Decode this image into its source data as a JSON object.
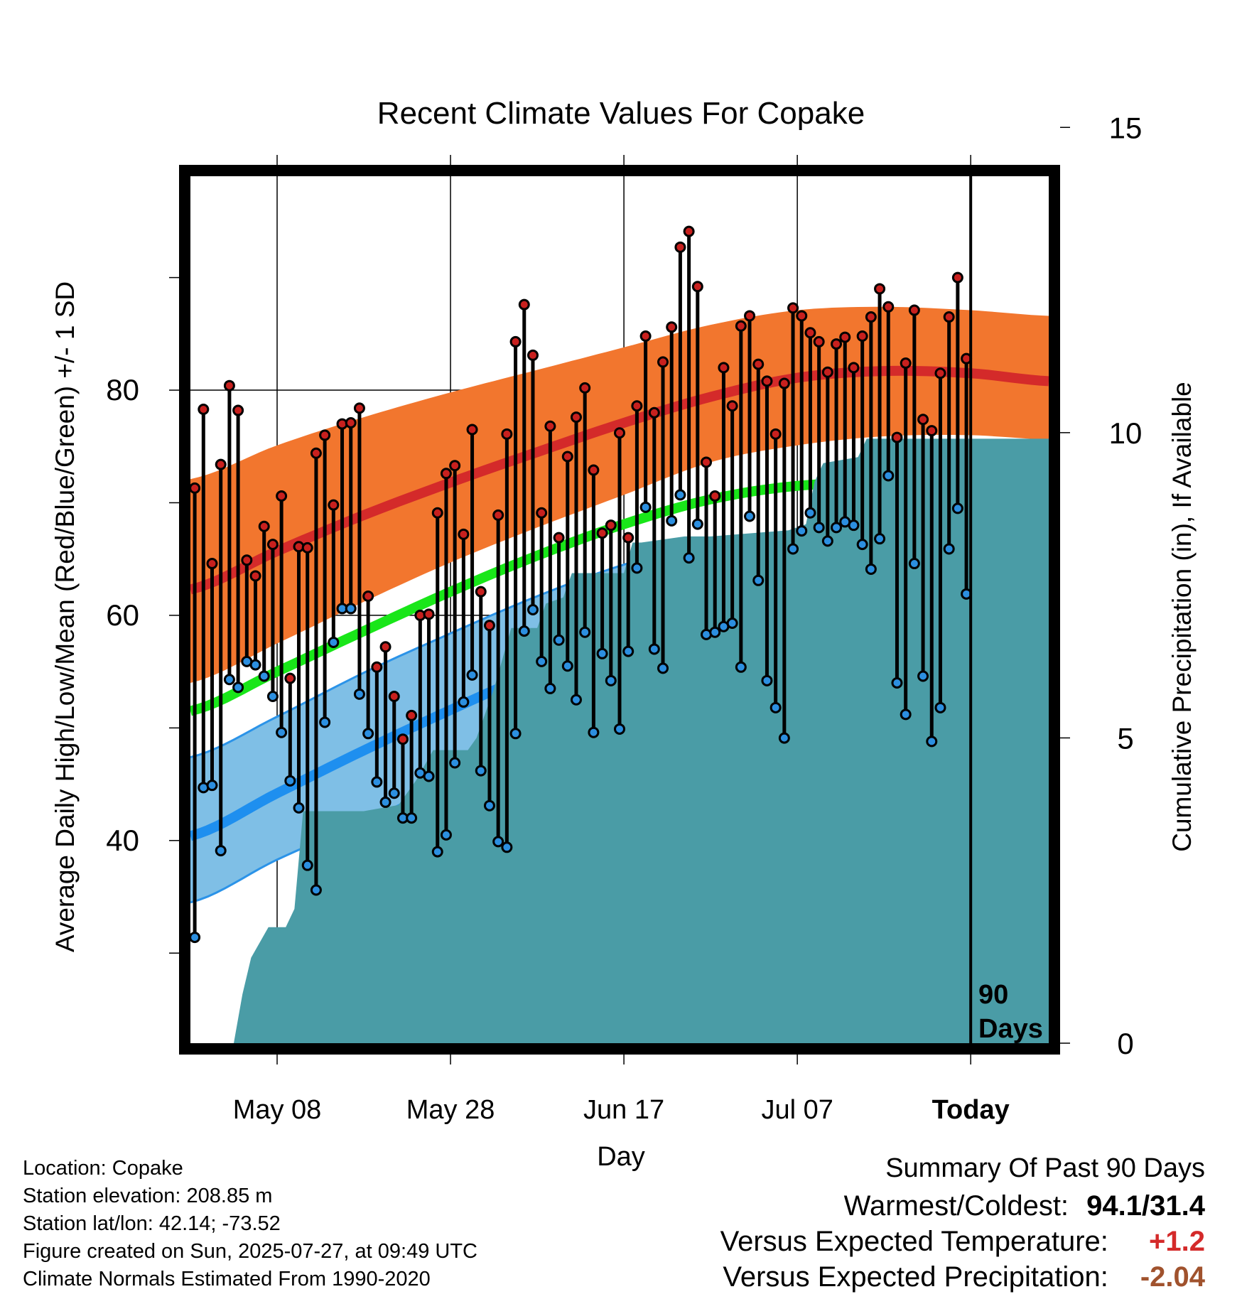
{
  "chart_data": {
    "type": "line",
    "title": "Recent Climate Values For Copake",
    "xlabel": "Day",
    "ylabel": "Average Daily High/Low/Mean (Red/Blue/Green) +/- 1 SD",
    "y2label": "Cumulative Precipitation (in), If Available",
    "x_tick_labels": [
      "May 08",
      "May 28",
      "Jun 17",
      "Jul 07",
      "Today"
    ],
    "y_ticks": [
      40,
      60,
      80
    ],
    "y_minor_ticks": [
      30,
      50,
      70,
      90
    ],
    "y2_ticks": [
      0,
      5,
      10,
      15
    ],
    "ylim": [
      22,
      99
    ],
    "y2lim": [
      0,
      14.2
    ],
    "period_label": [
      "90",
      "Days"
    ],
    "x_range_days_from_today": [
      -90,
      9
    ],
    "colors": {
      "high_band": "#f2762e",
      "high_mean": "#d42a2a",
      "low_band": "#7fbfe6",
      "low_mean": "#1e8fef",
      "low_band_edge": "#2b93e8",
      "mean": "#19e619",
      "precip": "#4a9ca6",
      "high_dot": "#c8201e",
      "low_dot": "#2c8fe0"
    },
    "normals": {
      "days": [
        -90,
        -80,
        -70,
        -60,
        -50,
        -40,
        -30,
        -20,
        -10,
        0,
        9
      ],
      "high_mean": [
        62.3,
        65.7,
        68.9,
        71.8,
        74.5,
        77.1,
        79.4,
        81.1,
        81.7,
        81.5,
        80.8
      ],
      "high_upper": [
        72.1,
        75.1,
        77.6,
        79.8,
        81.8,
        83.8,
        85.8,
        87.1,
        87.4,
        87.1,
        86.6
      ],
      "high_lower": [
        54.0,
        57.5,
        61.2,
        64.7,
        67.8,
        70.7,
        73.6,
        75.1,
        75.9,
        76.0,
        75.6
      ],
      "mean": [
        51.5,
        55.0,
        58.6,
        62.1,
        65.3,
        68.1,
        70.3,
        71.5,
        71.7,
        71.4,
        70.8
      ],
      "low_mean": [
        40.4,
        44.2,
        48.0,
        51.6,
        55.0,
        58.0,
        60.4,
        61.3,
        61.6,
        61.4,
        60.8
      ],
      "low_upper": [
        47.4,
        51.0,
        54.9,
        58.4,
        61.7,
        64.5,
        66.4,
        66.8,
        66.7,
        66.6,
        66.3
      ],
      "low_lower": [
        34.5,
        38.3,
        41.7,
        45.3,
        48.9,
        52.2,
        54.5,
        55.4,
        55.9,
        55.9,
        55.5
      ]
    },
    "daily": {
      "day_offset_from_today": [
        -90,
        -89,
        -88,
        -87,
        -86,
        -85,
        -84,
        -83,
        -82,
        -81,
        -80,
        -79,
        -78,
        -77,
        -76,
        -75,
        -74,
        -73,
        -72,
        -71,
        -70,
        -69,
        -68,
        -67,
        -66,
        -65,
        -64,
        -63,
        -62,
        -61,
        -60,
        -59,
        -58,
        -57,
        -56,
        -55,
        -54,
        -53,
        -52,
        -51,
        -50,
        -49,
        -48,
        -47,
        -46,
        -45,
        -44,
        -43,
        -42,
        -41,
        -40,
        -39,
        -38,
        -37,
        -36,
        -35,
        -34,
        -33,
        -32,
        -31,
        -30,
        -29,
        -28,
        -27,
        -26,
        -25,
        -24,
        -23,
        -22,
        -21,
        -20,
        -19,
        -18,
        -17,
        -16,
        -15,
        -14,
        -13,
        -12,
        -11,
        -10,
        -9,
        -8,
        -7,
        -6,
        -5,
        -4,
        -3,
        -2,
        -1
      ],
      "high": [
        71.3,
        78.3,
        64.6,
        73.4,
        80.4,
        78.2,
        64.9,
        63.5,
        67.9,
        66.3,
        70.6,
        54.4,
        66.1,
        66.0,
        74.4,
        76.0,
        69.8,
        77.0,
        77.1,
        78.4,
        61.7,
        55.4,
        57.2,
        52.8,
        49.0,
        51.1,
        60.0,
        60.1,
        69.1,
        72.6,
        73.3,
        67.2,
        76.5,
        62.1,
        59.1,
        68.9,
        76.1,
        84.3,
        87.6,
        83.1,
        69.1,
        76.8,
        66.9,
        74.1,
        77.6,
        80.2,
        72.9,
        67.3,
        68.0,
        76.2,
        66.9,
        78.6,
        84.8,
        78.0,
        82.5,
        85.6,
        92.7,
        94.1,
        89.2,
        73.6,
        70.6,
        82.0,
        78.6,
        85.7,
        86.6,
        82.3,
        80.8,
        76.1,
        80.6,
        87.3,
        86.6,
        85.1,
        84.3,
        81.6,
        84.1,
        84.7,
        82.0,
        84.8,
        86.5,
        89.0,
        87.4,
        75.8,
        82.4,
        87.1,
        77.4,
        76.4,
        81.5,
        86.5,
        90.0,
        82.8
      ],
      "low": [
        31.4,
        44.7,
        44.9,
        39.1,
        54.3,
        53.6,
        55.9,
        55.6,
        54.6,
        52.8,
        49.6,
        45.3,
        42.9,
        37.8,
        35.6,
        50.5,
        57.6,
        60.6,
        60.6,
        53.0,
        49.5,
        45.2,
        43.4,
        44.2,
        42.0,
        42.0,
        46.0,
        45.7,
        39.0,
        40.5,
        46.9,
        52.3,
        54.7,
        46.2,
        43.1,
        39.9,
        39.4,
        49.5,
        58.6,
        60.5,
        55.9,
        53.5,
        57.8,
        55.5,
        52.5,
        58.5,
        49.6,
        56.6,
        54.2,
        49.9,
        56.8,
        64.2,
        69.6,
        57.0,
        55.3,
        68.4,
        70.7,
        65.1,
        68.1,
        58.3,
        58.5,
        59.0,
        59.3,
        55.4,
        68.8,
        63.1,
        54.2,
        51.8,
        49.1,
        65.9,
        67.5,
        69.1,
        67.8,
        66.6,
        67.8,
        68.3,
        68.0,
        66.3,
        64.1,
        66.8,
        72.4,
        54.0,
        51.2,
        64.6,
        54.6,
        48.8,
        51.8,
        65.9,
        69.5,
        61.9
      ]
    },
    "precip_cumulative": {
      "days": [
        -90,
        -85,
        -84,
        -83,
        -81,
        -79,
        -78,
        -77,
        -70,
        -66,
        -64,
        -62,
        -58,
        -57,
        -55,
        -53,
        -50,
        -49,
        -47,
        -46,
        -40,
        -39,
        -38,
        -33,
        -30,
        -21,
        -19,
        -18,
        -17,
        -13,
        -12,
        -9,
        9
      ],
      "values": [
        0,
        0,
        0.8,
        1.4,
        1.9,
        1.9,
        2.2,
        3.8,
        3.8,
        3.9,
        4.3,
        4.8,
        4.8,
        5.0,
        5.8,
        6.8,
        6.8,
        7.2,
        7.3,
        7.7,
        7.7,
        8.2,
        8.2,
        8.3,
        8.3,
        8.4,
        8.5,
        9.2,
        9.5,
        9.6,
        9.9,
        9.9,
        9.9
      ]
    }
  },
  "info": [
    "Location: Copake",
    "Station elevation: 208.85 m",
    "Station lat/lon: 42.14; -73.52",
    "Figure created on Sun, 2025-07-27, at 09:49 UTC",
    "Climate Normals Estimated From 1990-2020"
  ],
  "summary": {
    "title": "Summary Of Past 90 Days",
    "warmest_coldest_label": "Warmest/Coldest:",
    "warmest_coldest_value": "94.1/31.4",
    "temp_label": "Versus Expected Temperature:",
    "temp_value": "+1.2",
    "temp_color": "#d42a2a",
    "precip_label": "Versus Expected Precipitation:",
    "precip_value": "-2.04",
    "precip_color": "#a0522d"
  }
}
